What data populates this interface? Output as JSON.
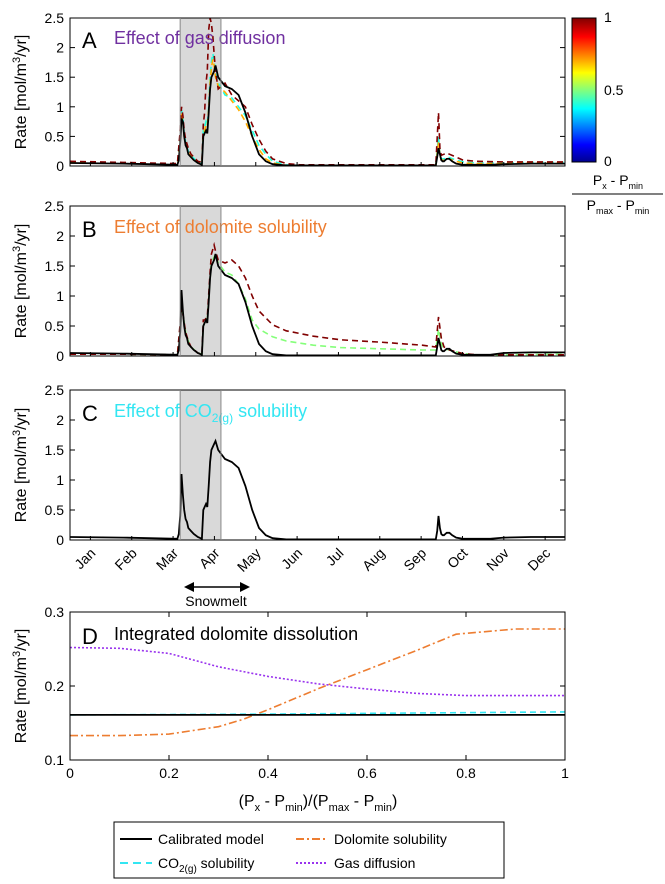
{
  "figure": {
    "month_labels": [
      "Jan",
      "Feb",
      "Mar",
      "Apr",
      "May",
      "Jun",
      "Jul",
      "Aug",
      "Sep",
      "Oct",
      "Nov",
      "Dec"
    ],
    "snowmelt_label": "Snowmelt",
    "snowmelt_range": [
      "Mar 23",
      "Apr 22"
    ]
  },
  "colorbar": {
    "ticks": [
      "1",
      "0.5",
      "0"
    ],
    "label_top": "Px - Pmin",
    "label_bottom": "Pmax - Pmin",
    "colormap": "jet",
    "colors": [
      "#00008f",
      "#0000ff",
      "#00ffff",
      "#ffff00",
      "#ff0000",
      "#800000"
    ]
  },
  "colors": {
    "calibrated": "#000000",
    "dolomite": "#ed7d31",
    "co2": "#33e6f2",
    "gas": "#9933ee",
    "shade": "#d9d9d9"
  },
  "chart_data": [
    {
      "panel": "A",
      "type": "line",
      "title": "Effect of gas diffusion",
      "title_color": "#7030a0",
      "ylabel": "Rate [mol/m³/yr]",
      "ylim": [
        0,
        2.5
      ],
      "yticks": [
        "0",
        "0.5",
        "1",
        "1.5",
        "2",
        "2.5"
      ],
      "x_unit": "day of year",
      "xlim": [
        1,
        365
      ],
      "shaded_region": [
        82,
        112
      ],
      "series": [
        {
          "colorbar_value": 0,
          "style": "solid",
          "x": [
            1,
            40,
            80,
            81,
            82,
            83,
            84,
            85,
            86,
            87,
            88,
            90,
            92,
            95,
            98,
            99,
            100,
            101,
            102,
            103,
            104,
            105,
            107,
            108,
            110,
            115,
            120,
            125,
            130,
            135,
            140,
            145,
            150,
            155,
            160,
            170,
            180,
            200,
            220,
            250,
            270,
            271,
            272,
            273,
            274,
            275,
            276,
            277,
            278,
            280,
            282,
            285,
            290,
            300,
            310,
            320,
            340,
            365
          ],
          "y": [
            0.05,
            0.04,
            0.02,
            0.1,
            0.4,
            0.8,
            0.75,
            0.5,
            0.35,
            0.3,
            0.2,
            0.15,
            0.1,
            0.05,
            0.02,
            0.5,
            0.55,
            0.6,
            0.55,
            0.9,
            1.3,
            1.5,
            1.6,
            1.7,
            1.5,
            1.35,
            1.3,
            1.2,
            0.9,
            0.5,
            0.2,
            0.08,
            0.03,
            0.02,
            0.01,
            0.01,
            0.01,
            0.01,
            0.01,
            0.01,
            0.01,
            0.15,
            0.3,
            0.2,
            0.1,
            0.08,
            0.08,
            0.1,
            0.12,
            0.12,
            0.08,
            0.04,
            0.02,
            0.02,
            0.02,
            0.03,
            0.04,
            0.04
          ]
        },
        {
          "colorbar_value": 0.4,
          "style": "dashed",
          "x": [
            1,
            40,
            80,
            82,
            83,
            84,
            85,
            86,
            88,
            90,
            95,
            98,
            99,
            100,
            101,
            102,
            103,
            104,
            105,
            106,
            107,
            108,
            110,
            115,
            120,
            125,
            130,
            135,
            140,
            145,
            150,
            160,
            170,
            200,
            270,
            272,
            273,
            274,
            276,
            278,
            280,
            285,
            290,
            300,
            320,
            340,
            365
          ],
          "y": [
            0.06,
            0.05,
            0.03,
            0.5,
            0.95,
            0.8,
            0.55,
            0.4,
            0.25,
            0.18,
            0.06,
            0.05,
            0.6,
            0.65,
            0.75,
            0.7,
            1.0,
            1.5,
            1.75,
            1.9,
            1.8,
            1.6,
            1.4,
            1.2,
            1.15,
            1.0,
            0.85,
            0.6,
            0.35,
            0.2,
            0.08,
            0.02,
            0.01,
            0.01,
            0.01,
            0.5,
            0.2,
            0.12,
            0.12,
            0.15,
            0.14,
            0.1,
            0.07,
            0.05,
            0.05,
            0.06,
            0.06
          ]
        },
        {
          "colorbar_value": 0.7,
          "style": "dashed",
          "x": [
            1,
            40,
            80,
            82,
            83,
            84,
            85,
            86,
            88,
            90,
            95,
            98,
            99,
            100,
            101,
            102,
            103,
            104,
            105,
            106,
            107,
            108,
            110,
            115,
            120,
            125,
            130,
            135,
            140,
            145,
            150,
            160,
            170,
            200,
            270,
            272,
            273,
            274,
            276,
            278,
            280,
            285,
            290,
            300,
            320,
            340,
            365
          ],
          "y": [
            0.07,
            0.05,
            0.03,
            0.45,
            0.9,
            0.75,
            0.5,
            0.38,
            0.22,
            0.16,
            0.05,
            0.04,
            0.55,
            0.6,
            0.7,
            0.68,
            0.95,
            1.4,
            1.65,
            1.8,
            1.7,
            1.5,
            1.35,
            1.25,
            1.1,
            0.95,
            0.75,
            0.5,
            0.28,
            0.12,
            0.05,
            0.01,
            0.01,
            0.01,
            0.01,
            0.4,
            0.18,
            0.1,
            0.1,
            0.13,
            0.12,
            0.08,
            0.05,
            0.04,
            0.04,
            0.05,
            0.05
          ]
        },
        {
          "colorbar_value": 1,
          "style": "dashed",
          "x": [
            1,
            40,
            80,
            82,
            83,
            84,
            85,
            86,
            88,
            90,
            95,
            98,
            99,
            100,
            101,
            102,
            103,
            104,
            105,
            106,
            107,
            108,
            110,
            115,
            120,
            125,
            130,
            135,
            140,
            145,
            150,
            160,
            170,
            200,
            270,
            272,
            273,
            274,
            276,
            278,
            280,
            285,
            290,
            300,
            320,
            340,
            365
          ],
          "y": [
            0.08,
            0.06,
            0.04,
            0.6,
            1.0,
            0.85,
            0.6,
            0.45,
            0.3,
            0.2,
            0.08,
            0.06,
            0.7,
            0.9,
            1.4,
            1.6,
            2.3,
            2.5,
            2.4,
            2.2,
            1.9,
            1.6,
            1.3,
            1.4,
            1.2,
            1.1,
            1.0,
            0.7,
            0.45,
            0.25,
            0.12,
            0.04,
            0.02,
            0.02,
            0.02,
            0.9,
            0.3,
            0.18,
            0.2,
            0.22,
            0.2,
            0.15,
            0.1,
            0.08,
            0.07,
            0.07,
            0.07
          ]
        }
      ]
    },
    {
      "panel": "B",
      "type": "line",
      "title": "Effect of dolomite solubility",
      "title_color": "#ed7d31",
      "ylabel": "Rate [mol/m³/yr]",
      "ylim": [
        0,
        2.5
      ],
      "yticks": [
        "0",
        "0.5",
        "1",
        "1.5",
        "2",
        "2.5"
      ],
      "x_unit": "day of year",
      "xlim": [
        1,
        365
      ],
      "shaded_region": [
        82,
        112
      ],
      "series": [
        {
          "colorbar_value": 0,
          "style": "solid",
          "x": [
            1,
            40,
            80,
            81,
            82,
            83,
            84,
            85,
            86,
            87,
            88,
            90,
            92,
            95,
            98,
            99,
            100,
            101,
            102,
            103,
            104,
            105,
            107,
            108,
            110,
            115,
            120,
            125,
            130,
            135,
            140,
            145,
            150,
            155,
            160,
            170,
            180,
            200,
            220,
            250,
            270,
            271,
            272,
            273,
            274,
            275,
            276,
            277,
            278,
            280,
            282,
            285,
            290,
            300,
            310,
            320,
            340,
            365
          ],
          "y": [
            0.05,
            0.04,
            0.02,
            0.1,
            0.4,
            1.1,
            0.75,
            0.5,
            0.35,
            0.3,
            0.2,
            0.15,
            0.1,
            0.05,
            0.02,
            0.5,
            0.55,
            0.6,
            0.55,
            0.9,
            1.3,
            1.5,
            1.6,
            1.7,
            1.5,
            1.35,
            1.3,
            1.2,
            0.9,
            0.5,
            0.2,
            0.08,
            0.03,
            0.02,
            0.01,
            0.01,
            0.01,
            0.01,
            0.01,
            0.01,
            0.01,
            0.15,
            0.3,
            0.2,
            0.1,
            0.08,
            0.08,
            0.1,
            0.12,
            0.12,
            0.08,
            0.04,
            0.02,
            0.02,
            0.02,
            0.05,
            0.06,
            0.06
          ]
        },
        {
          "colorbar_value": 0.5,
          "style": "dashed",
          "x": [
            1,
            40,
            80,
            82,
            83,
            84,
            86,
            88,
            90,
            95,
            98,
            99,
            100,
            102,
            104,
            105,
            107,
            108,
            110,
            115,
            120,
            125,
            130,
            135,
            140,
            150,
            160,
            180,
            200,
            230,
            260,
            270,
            272,
            274,
            276,
            280,
            290,
            300,
            320,
            365
          ],
          "y": [
            0.04,
            0.03,
            0.02,
            0.5,
            0.85,
            0.7,
            0.4,
            0.25,
            0.15,
            0.05,
            0.03,
            0.5,
            0.55,
            0.6,
            1.3,
            1.55,
            1.65,
            1.7,
            1.55,
            1.4,
            1.35,
            1.2,
            0.95,
            0.6,
            0.45,
            0.32,
            0.25,
            0.18,
            0.14,
            0.12,
            0.1,
            0.1,
            0.45,
            0.2,
            0.12,
            0.1,
            0.04,
            0.02,
            0.02,
            0.03
          ]
        },
        {
          "colorbar_value": 1,
          "style": "dashed",
          "x": [
            1,
            40,
            80,
            82,
            83,
            84,
            86,
            88,
            90,
            95,
            98,
            99,
            100,
            102,
            104,
            105,
            107,
            108,
            110,
            115,
            120,
            125,
            130,
            135,
            140,
            150,
            160,
            180,
            200,
            230,
            260,
            270,
            272,
            274,
            276,
            280,
            290,
            300,
            320,
            365
          ],
          "y": [
            0.03,
            0.03,
            0.02,
            0.55,
            0.8,
            0.7,
            0.4,
            0.25,
            0.15,
            0.05,
            0.03,
            0.6,
            0.6,
            0.65,
            1.4,
            1.7,
            1.85,
            1.75,
            1.6,
            1.55,
            1.6,
            1.5,
            1.3,
            1.0,
            0.75,
            0.52,
            0.42,
            0.33,
            0.27,
            0.23,
            0.18,
            0.15,
            0.65,
            0.3,
            0.15,
            0.1,
            0.04,
            0.02,
            0.02,
            0.02
          ]
        }
      ]
    },
    {
      "panel": "C",
      "type": "line",
      "title": "Effect of CO2(g) solubility",
      "title_color": "#33e6f2",
      "ylabel": "Rate [mol/m³/yr]",
      "ylim": [
        0,
        2.5
      ],
      "yticks": [
        "0",
        "0.5",
        "1",
        "1.5",
        "2",
        "2.5"
      ],
      "x_unit": "day of year",
      "xlim": [
        1,
        365
      ],
      "shaded_region": [
        82,
        112
      ],
      "series": [
        {
          "colorbar_value": 0,
          "style": "solid",
          "x": [
            1,
            40,
            80,
            81,
            82,
            83,
            84,
            85,
            86,
            87,
            88,
            90,
            92,
            95,
            98,
            99,
            100,
            101,
            102,
            103,
            104,
            105,
            107,
            108,
            110,
            115,
            120,
            125,
            130,
            135,
            140,
            145,
            150,
            155,
            160,
            170,
            180,
            200,
            220,
            250,
            270,
            271,
            272,
            273,
            274,
            275,
            276,
            277,
            278,
            280,
            282,
            285,
            290,
            300,
            310,
            320,
            340,
            365
          ],
          "y": [
            0.05,
            0.04,
            0.02,
            0.1,
            0.4,
            1.1,
            0.75,
            0.5,
            0.35,
            0.3,
            0.2,
            0.15,
            0.1,
            0.05,
            0.02,
            0.5,
            0.55,
            0.6,
            0.55,
            0.9,
            1.3,
            1.5,
            1.6,
            1.65,
            1.5,
            1.35,
            1.3,
            1.2,
            0.9,
            0.5,
            0.2,
            0.08,
            0.03,
            0.02,
            0.01,
            0.01,
            0.01,
            0.01,
            0.01,
            0.01,
            0.01,
            0.15,
            0.4,
            0.2,
            0.1,
            0.08,
            0.08,
            0.1,
            0.12,
            0.12,
            0.08,
            0.04,
            0.02,
            0.02,
            0.02,
            0.04,
            0.05,
            0.05
          ]
        }
      ]
    },
    {
      "panel": "D",
      "type": "line",
      "title": "Integrated dolomite dissolution",
      "ylabel": "Rate [mol/m³/yr]",
      "xlabel": "(Px - Pmin)/(Pmax - Pmin)",
      "xlim": [
        0,
        1
      ],
      "ylim": [
        0.1,
        0.3
      ],
      "xticks": [
        "0",
        "0.2",
        "0.4",
        "0.6",
        "0.8",
        "1"
      ],
      "yticks": [
        "0.1",
        "0.2",
        "0.3"
      ],
      "series": [
        {
          "name": "Calibrated model",
          "style": "solid",
          "x": [
            0,
            1
          ],
          "y": [
            0.161,
            0.161
          ]
        },
        {
          "name": "Dolomite solubility",
          "style": "dashdot",
          "x": [
            0,
            0.1,
            0.2,
            0.3,
            0.35,
            0.4,
            0.5,
            0.6,
            0.7,
            0.78,
            0.9,
            1
          ],
          "y": [
            0.133,
            0.133,
            0.135,
            0.145,
            0.155,
            0.168,
            0.196,
            0.222,
            0.248,
            0.27,
            0.277,
            0.277
          ]
        },
        {
          "name": "CO2(g) solubility",
          "style": "dashed",
          "x": [
            0,
            0.4,
            1
          ],
          "y": [
            0.161,
            0.162,
            0.165
          ]
        },
        {
          "name": "Gas diffusion",
          "style": "dotted",
          "x": [
            0,
            0.1,
            0.2,
            0.3,
            0.4,
            0.5,
            0.6,
            0.7,
            0.8,
            0.9,
            1
          ],
          "y": [
            0.252,
            0.251,
            0.244,
            0.226,
            0.213,
            0.203,
            0.196,
            0.19,
            0.187,
            0.187,
            0.187
          ]
        }
      ]
    }
  ]
}
